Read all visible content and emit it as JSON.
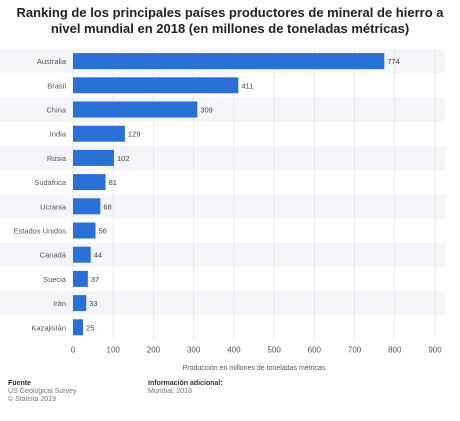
{
  "chart_data": {
    "type": "bar",
    "orientation": "horizontal",
    "title": "Ranking de los principales países productores de mineral de hierro a nivel mundial en 2018 (en millones de toneladas métricas)",
    "categories": [
      "Australia",
      "Brasil",
      "China",
      "India",
      "Rusia",
      "Sudáfrica",
      "Ucrania",
      "Estados Unidos",
      "Canadá",
      "Suecia",
      "Irán",
      "Kazajistán"
    ],
    "values": [
      774,
      411,
      309,
      129,
      102,
      81,
      68,
      56,
      44,
      37,
      33,
      25
    ],
    "xlabel": "Producción en millones de toneladas métricas",
    "xlim": [
      0,
      900
    ],
    "xticks": [
      0,
      100,
      200,
      300,
      400,
      500,
      600,
      700,
      800,
      900
    ],
    "grid": "vertical",
    "colors": {
      "bar": "#2a6fd6",
      "band": "#f3f5f8",
      "grid": "#dddddd"
    }
  },
  "footer": {
    "source_label": "Fuente",
    "source_lines": [
      "US Geological Survey",
      "© Statista 2019"
    ],
    "info_label": "Información adicional:",
    "info_lines": [
      "Mundial; 2018"
    ]
  }
}
